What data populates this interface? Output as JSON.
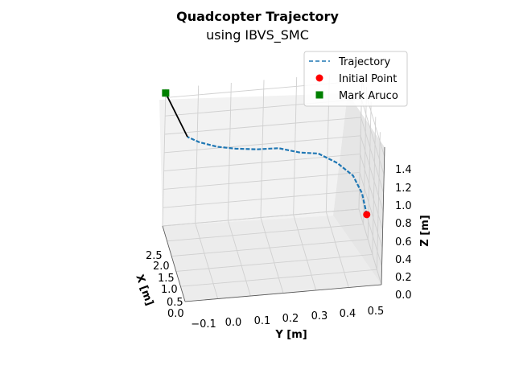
{
  "chart_data": {
    "type": "line",
    "projection": "3d",
    "title": "Quadcopter Trajectory",
    "subtitle": "using IBVS_SMC",
    "xlabel": "X [m]",
    "ylabel": "Y [m]",
    "zlabel": "Z [m]",
    "xlim": [
      0.0,
      2.5
    ],
    "ylim": [
      -0.1,
      0.5
    ],
    "zlim": [
      0.0,
      1.4
    ],
    "x_ticks": [
      "0.0",
      "0.5",
      "1.0",
      "1.5",
      "2.0",
      "2.5"
    ],
    "y_ticks": [
      "−0.1",
      "0.0",
      "0.1",
      "0.2",
      "0.3",
      "0.4",
      "0.5"
    ],
    "z_ticks": [
      "0.0",
      "0.2",
      "0.4",
      "0.6",
      "0.8",
      "1.0",
      "1.2",
      "1.4"
    ],
    "grid": true,
    "legend_position": "top-right",
    "legend": [
      "Trajectory",
      "Initial Point",
      "Mark Aruco"
    ],
    "series": [
      {
        "name": "Trajectory",
        "style": "dashed",
        "color": "#1f77b4",
        "points": [
          {
            "x": 0.0,
            "y": 0.45,
            "z": 0.78
          },
          {
            "x": 0.2,
            "y": 0.44,
            "z": 0.95
          },
          {
            "x": 0.5,
            "y": 0.42,
            "z": 1.05
          },
          {
            "x": 0.8,
            "y": 0.38,
            "z": 1.1
          },
          {
            "x": 1.1,
            "y": 0.33,
            "z": 1.12
          },
          {
            "x": 1.3,
            "y": 0.28,
            "z": 1.08
          },
          {
            "x": 1.5,
            "y": 0.22,
            "z": 1.08
          },
          {
            "x": 1.7,
            "y": 0.16,
            "z": 1.02
          },
          {
            "x": 1.9,
            "y": 0.1,
            "z": 0.98
          },
          {
            "x": 2.1,
            "y": 0.05,
            "z": 0.95
          },
          {
            "x": 2.3,
            "y": 0.0,
            "z": 0.95
          },
          {
            "x": 2.5,
            "y": -0.03,
            "z": 0.95
          }
        ]
      },
      {
        "name": "Initial Point",
        "marker": "circle",
        "color": "#ff0000",
        "points": [
          {
            "x": 0.0,
            "y": 0.45,
            "z": 0.78
          }
        ]
      },
      {
        "name": "Mark Aruco",
        "marker": "square",
        "color": "#008000",
        "points": [
          {
            "x": 2.5,
            "y": -0.1,
            "z": 1.45
          }
        ]
      }
    ]
  }
}
